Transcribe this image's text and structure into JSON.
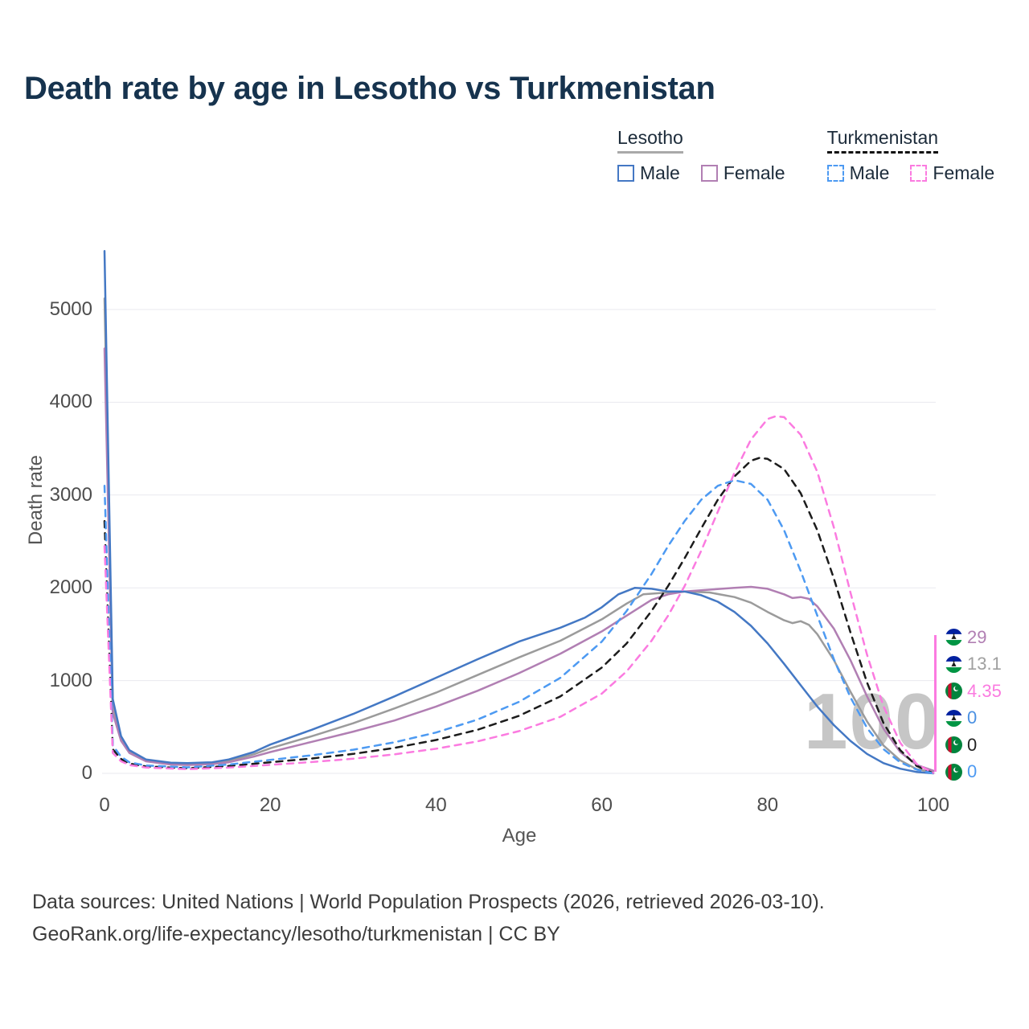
{
  "title": "Death rate by age in Lesotho vs Turkmenistan",
  "watermark": "100",
  "legend": {
    "groups": [
      {
        "label": "Lesotho",
        "style": "solid",
        "line_color": "#a9a9a9",
        "items": [
          {
            "label": "Male",
            "color": "#4478c4"
          },
          {
            "label": "Female",
            "color": "#b17fb3"
          }
        ]
      },
      {
        "label": "Turkmenistan",
        "style": "dashed",
        "line_color": "#111111",
        "items": [
          {
            "label": "Male",
            "color": "#4d9af2"
          },
          {
            "label": "Female",
            "color": "#fb7be0"
          }
        ]
      }
    ]
  },
  "end_labels": [
    {
      "value": "29",
      "color": "#b17fb3",
      "flag": "lesotho",
      "series": "Lesotho Female"
    },
    {
      "value": "13.1",
      "color": "#a0a0a0",
      "flag": "lesotho",
      "series": "Lesotho Both"
    },
    {
      "value": "4.35",
      "color": "#fb7be0",
      "flag": "turkmenistan",
      "series": "Turkmenistan Female"
    },
    {
      "value": "0",
      "color": "#4a90e2",
      "flag": "lesotho",
      "series": "Lesotho Male"
    },
    {
      "value": "0",
      "color": "#222222",
      "flag": "turkmenistan",
      "series": "Turkmenistan Both"
    },
    {
      "value": "0",
      "color": "#4d9af2",
      "flag": "turkmenistan",
      "series": "Turkmenistan Male"
    }
  ],
  "footer": {
    "line1": "Data sources: United Nations | World Population Prospects (2026, retrieved 2026-03-10).",
    "line2": "GeoRank.org/life-expectancy/lesotho/turkmenistan | CC BY"
  },
  "chart_data": {
    "type": "line",
    "title": "Death rate by age in Lesotho vs Turkmenistan",
    "xlabel": "Age",
    "ylabel": "Death rate",
    "xlim": [
      0,
      100
    ],
    "ylim": [
      0,
      5700
    ],
    "xticks": [
      0,
      20,
      40,
      60,
      80,
      100
    ],
    "yticks": [
      0,
      1000,
      2000,
      3000,
      4000,
      5000
    ],
    "grid": "horizontal",
    "legend_position": "top-right",
    "series": [
      {
        "id": "lesotho-both",
        "name": "Lesotho Both",
        "color": "#9b9b9b",
        "style": "solid",
        "points": [
          [
            0,
            5120
          ],
          [
            1,
            720
          ],
          [
            2,
            380
          ],
          [
            3,
            235
          ],
          [
            5,
            140
          ],
          [
            8,
            105
          ],
          [
            10,
            100
          ],
          [
            13,
            110
          ],
          [
            15,
            135
          ],
          [
            18,
            205
          ],
          [
            20,
            270
          ],
          [
            25,
            400
          ],
          [
            30,
            540
          ],
          [
            35,
            700
          ],
          [
            40,
            870
          ],
          [
            45,
            1060
          ],
          [
            50,
            1250
          ],
          [
            55,
            1430
          ],
          [
            60,
            1660
          ],
          [
            63,
            1830
          ],
          [
            65,
            1930
          ],
          [
            68,
            1950
          ],
          [
            70,
            1960
          ],
          [
            73,
            1950
          ],
          [
            76,
            1900
          ],
          [
            78,
            1840
          ],
          [
            80,
            1740
          ],
          [
            82,
            1650
          ],
          [
            83,
            1620
          ],
          [
            84,
            1640
          ],
          [
            85,
            1600
          ],
          [
            86,
            1500
          ],
          [
            88,
            1220
          ],
          [
            90,
            880
          ],
          [
            92,
            560
          ],
          [
            94,
            300
          ],
          [
            96,
            140
          ],
          [
            98,
            45
          ],
          [
            100,
            13.1
          ]
        ]
      },
      {
        "id": "lesotho-female",
        "name": "Lesotho Female",
        "color": "#b17fb3",
        "style": "solid",
        "points": [
          [
            0,
            4580
          ],
          [
            1,
            650
          ],
          [
            2,
            350
          ],
          [
            3,
            220
          ],
          [
            5,
            130
          ],
          [
            8,
            95
          ],
          [
            10,
            90
          ],
          [
            13,
            100
          ],
          [
            15,
            120
          ],
          [
            18,
            180
          ],
          [
            20,
            230
          ],
          [
            25,
            340
          ],
          [
            30,
            450
          ],
          [
            35,
            570
          ],
          [
            40,
            720
          ],
          [
            45,
            890
          ],
          [
            50,
            1080
          ],
          [
            55,
            1290
          ],
          [
            60,
            1530
          ],
          [
            63,
            1700
          ],
          [
            66,
            1870
          ],
          [
            68,
            1930
          ],
          [
            70,
            1960
          ],
          [
            73,
            1980
          ],
          [
            76,
            2000
          ],
          [
            78,
            2010
          ],
          [
            80,
            1990
          ],
          [
            82,
            1930
          ],
          [
            83,
            1890
          ],
          [
            84,
            1900
          ],
          [
            85,
            1880
          ],
          [
            86,
            1800
          ],
          [
            88,
            1560
          ],
          [
            90,
            1220
          ],
          [
            92,
            830
          ],
          [
            94,
            480
          ],
          [
            96,
            230
          ],
          [
            98,
            90
          ],
          [
            100,
            29
          ]
        ]
      },
      {
        "id": "lesotho-male",
        "name": "Lesotho Male",
        "color": "#4478c4",
        "style": "solid",
        "points": [
          [
            0,
            5630
          ],
          [
            1,
            800
          ],
          [
            2,
            400
          ],
          [
            3,
            250
          ],
          [
            5,
            150
          ],
          [
            8,
            115
          ],
          [
            10,
            110
          ],
          [
            13,
            120
          ],
          [
            15,
            150
          ],
          [
            18,
            230
          ],
          [
            20,
            310
          ],
          [
            25,
            470
          ],
          [
            30,
            640
          ],
          [
            35,
            830
          ],
          [
            40,
            1030
          ],
          [
            45,
            1230
          ],
          [
            50,
            1420
          ],
          [
            55,
            1570
          ],
          [
            58,
            1680
          ],
          [
            60,
            1790
          ],
          [
            62,
            1930
          ],
          [
            64,
            2000
          ],
          [
            66,
            1990
          ],
          [
            68,
            1960
          ],
          [
            70,
            1960
          ],
          [
            72,
            1920
          ],
          [
            74,
            1850
          ],
          [
            76,
            1740
          ],
          [
            78,
            1590
          ],
          [
            80,
            1400
          ],
          [
            82,
            1180
          ],
          [
            84,
            950
          ],
          [
            86,
            720
          ],
          [
            88,
            520
          ],
          [
            90,
            350
          ],
          [
            92,
            210
          ],
          [
            94,
            110
          ],
          [
            96,
            50
          ],
          [
            98,
            15
          ],
          [
            100,
            0
          ]
        ]
      },
      {
        "id": "turkmenistan-both",
        "name": "Turkmenistan Both",
        "color": "#1c1c1c",
        "style": "dashed",
        "points": [
          [
            0,
            2720
          ],
          [
            1,
            260
          ],
          [
            2,
            155
          ],
          [
            3,
            105
          ],
          [
            5,
            75
          ],
          [
            10,
            55
          ],
          [
            15,
            80
          ],
          [
            20,
            120
          ],
          [
            25,
            160
          ],
          [
            30,
            210
          ],
          [
            35,
            275
          ],
          [
            40,
            360
          ],
          [
            45,
            470
          ],
          [
            50,
            620
          ],
          [
            55,
            830
          ],
          [
            60,
            1140
          ],
          [
            63,
            1400
          ],
          [
            66,
            1750
          ],
          [
            68,
            2020
          ],
          [
            70,
            2320
          ],
          [
            72,
            2640
          ],
          [
            74,
            2950
          ],
          [
            76,
            3200
          ],
          [
            78,
            3370
          ],
          [
            79,
            3400
          ],
          [
            80,
            3390
          ],
          [
            82,
            3280
          ],
          [
            84,
            3020
          ],
          [
            86,
            2620
          ],
          [
            88,
            2100
          ],
          [
            90,
            1520
          ],
          [
            92,
            980
          ],
          [
            94,
            540
          ],
          [
            96,
            250
          ],
          [
            98,
            80
          ],
          [
            100,
            0
          ]
        ]
      },
      {
        "id": "turkmenistan-male",
        "name": "Turkmenistan Male",
        "color": "#4d9af2",
        "style": "dashed",
        "points": [
          [
            0,
            3100
          ],
          [
            1,
            300
          ],
          [
            2,
            180
          ],
          [
            3,
            120
          ],
          [
            5,
            85
          ],
          [
            10,
            65
          ],
          [
            15,
            95
          ],
          [
            20,
            145
          ],
          [
            25,
            195
          ],
          [
            30,
            255
          ],
          [
            35,
            335
          ],
          [
            40,
            440
          ],
          [
            45,
            580
          ],
          [
            50,
            770
          ],
          [
            55,
            1030
          ],
          [
            60,
            1420
          ],
          [
            63,
            1750
          ],
          [
            66,
            2150
          ],
          [
            68,
            2450
          ],
          [
            70,
            2720
          ],
          [
            72,
            2950
          ],
          [
            74,
            3100
          ],
          [
            76,
            3160
          ],
          [
            78,
            3120
          ],
          [
            80,
            2950
          ],
          [
            82,
            2620
          ],
          [
            84,
            2180
          ],
          [
            86,
            1700
          ],
          [
            88,
            1230
          ],
          [
            90,
            820
          ],
          [
            92,
            490
          ],
          [
            94,
            260
          ],
          [
            96,
            120
          ],
          [
            98,
            40
          ],
          [
            100,
            0
          ]
        ]
      },
      {
        "id": "turkmenistan-female",
        "name": "Turkmenistan Female",
        "color": "#fb7be0",
        "style": "dashed",
        "points": [
          [
            0,
            2450
          ],
          [
            1,
            220
          ],
          [
            2,
            130
          ],
          [
            3,
            90
          ],
          [
            5,
            62
          ],
          [
            10,
            45
          ],
          [
            15,
            62
          ],
          [
            20,
            92
          ],
          [
            25,
            122
          ],
          [
            30,
            158
          ],
          [
            35,
            205
          ],
          [
            40,
            265
          ],
          [
            45,
            345
          ],
          [
            50,
            455
          ],
          [
            55,
            610
          ],
          [
            60,
            860
          ],
          [
            63,
            1100
          ],
          [
            66,
            1430
          ],
          [
            68,
            1700
          ],
          [
            70,
            2020
          ],
          [
            72,
            2400
          ],
          [
            74,
            2820
          ],
          [
            76,
            3240
          ],
          [
            78,
            3600
          ],
          [
            80,
            3820
          ],
          [
            81,
            3850
          ],
          [
            82,
            3840
          ],
          [
            84,
            3650
          ],
          [
            86,
            3250
          ],
          [
            88,
            2650
          ],
          [
            90,
            1950
          ],
          [
            92,
            1280
          ],
          [
            94,
            720
          ],
          [
            96,
            330
          ],
          [
            98,
            100
          ],
          [
            100,
            4.35
          ]
        ]
      }
    ]
  }
}
